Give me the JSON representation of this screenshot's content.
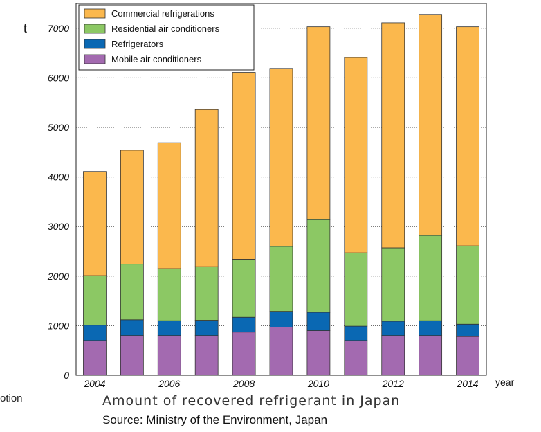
{
  "caption": {
    "left_fragment": "otion",
    "title": "Amount of recovered refrigerant in Japan",
    "source": "Source: Ministry of the Environment, Japan"
  },
  "chart_data": {
    "type": "bar",
    "stacked": true,
    "y_unit": "t",
    "x_unit": "year",
    "ylim": [
      0,
      7500
    ],
    "y_ticks": [
      0,
      1000,
      2000,
      3000,
      4000,
      5000,
      6000,
      7000
    ],
    "y_tick_labels": [
      "0",
      "1000",
      "2000",
      "3000",
      "4000",
      "5000",
      "6000",
      "7000"
    ],
    "grid": "horizontal dotted",
    "legend_position": "top-left",
    "categories": [
      "2004",
      "2005",
      "2006",
      "2007",
      "2008",
      "2009",
      "2010",
      "2011",
      "2012",
      "2013",
      "2014"
    ],
    "x_tick_labels": [
      "2004",
      "",
      "2006",
      "",
      "2008",
      "",
      "2010",
      "",
      "2012",
      "",
      "2014"
    ],
    "series": [
      {
        "name": "Mobile air conditioners",
        "color": "#a36ab0",
        "values": [
          700,
          800,
          800,
          800,
          870,
          970,
          900,
          700,
          800,
          800,
          780
        ]
      },
      {
        "name": "Refrigerators",
        "color": "#0a68b3",
        "values": [
          310,
          320,
          300,
          310,
          300,
          320,
          370,
          290,
          290,
          300,
          250
        ]
      },
      {
        "name": "Residential air conditioners",
        "color": "#8cc864",
        "values": [
          1000,
          1120,
          1050,
          1080,
          1170,
          1310,
          1870,
          1480,
          1480,
          1720,
          1580
        ]
      },
      {
        "name": "Commercial refrigerations",
        "color": "#fbb84d",
        "values": [
          2100,
          2300,
          2540,
          3170,
          3770,
          3590,
          3890,
          3940,
          4540,
          4460,
          4420
        ]
      }
    ],
    "legend_order": [
      "Commercial refrigerations",
      "Residential air conditioners",
      "Refrigerators",
      "Mobile air conditioners"
    ]
  }
}
